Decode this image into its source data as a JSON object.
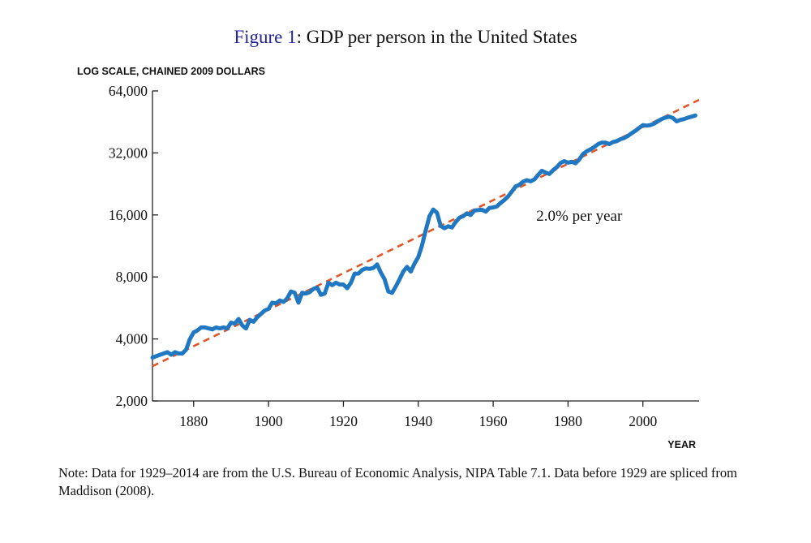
{
  "figure": {
    "label": "Figure 1",
    "title_text": ": GDP per person in the United States"
  },
  "note": "Note: Data for 1929–2014 are from the U.S. Bureau of Economic Analysis, NIPA Table 7.1. Data before 1929 are spliced from Maddison (2008).",
  "colors": {
    "series": "#1f78c1",
    "trend": "#e0562a",
    "axis": "#222222",
    "label_blue": "#23239a"
  },
  "chart_data": {
    "type": "line",
    "title": "Figure 1: GDP per person in the United States",
    "ylabel": "LOG SCALE, CHAINED 2009 DOLLARS",
    "xlabel": "YEAR",
    "y_scale": "log",
    "xlim": [
      1869,
      2015
    ],
    "ylim": [
      2000,
      64000
    ],
    "x_ticks": [
      1880,
      1900,
      1920,
      1940,
      1960,
      1980,
      2000
    ],
    "x_tick_labels": [
      "1880",
      "1900",
      "1920",
      "1940",
      "1960",
      "1980",
      "2000"
    ],
    "y_ticks": [
      2000,
      4000,
      8000,
      16000,
      32000,
      64000
    ],
    "y_tick_labels": [
      "2,000",
      "4,000",
      "8,000",
      "16,000",
      "32,000",
      "64,000"
    ],
    "grid": false,
    "annotation": {
      "text": "2.0% per year",
      "x": 1983,
      "y": 15800
    },
    "series": [
      {
        "style": "solid",
        "x": [
          1869,
          1871,
          1873,
          1874,
          1875,
          1876,
          1877,
          1878,
          1879,
          1880,
          1881,
          1882,
          1883,
          1884,
          1885,
          1886,
          1887,
          1888,
          1889,
          1890,
          1891,
          1892,
          1893,
          1894,
          1895,
          1896,
          1897,
          1898,
          1899,
          1900,
          1901,
          1902,
          1903,
          1904,
          1905,
          1906,
          1907,
          1908,
          1909,
          1910,
          1911,
          1912,
          1913,
          1914,
          1915,
          1916,
          1917,
          1918,
          1919,
          1920,
          1921,
          1922,
          1923,
          1924,
          1925,
          1926,
          1927,
          1928,
          1929,
          1930,
          1931,
          1932,
          1933,
          1934,
          1935,
          1936,
          1937,
          1938,
          1939,
          1940,
          1941,
          1942,
          1943,
          1944,
          1945,
          1946,
          1947,
          1948,
          1949,
          1950,
          1951,
          1952,
          1953,
          1954,
          1955,
          1956,
          1957,
          1958,
          1959,
          1960,
          1961,
          1962,
          1963,
          1964,
          1965,
          1966,
          1967,
          1968,
          1969,
          1970,
          1971,
          1972,
          1973,
          1974,
          1975,
          1976,
          1977,
          1978,
          1979,
          1980,
          1981,
          1982,
          1983,
          1984,
          1985,
          1986,
          1987,
          1988,
          1989,
          1990,
          1991,
          1992,
          1993,
          1994,
          1995,
          1996,
          1997,
          1998,
          1999,
          2000,
          2001,
          2002,
          2003,
          2004,
          2005,
          2006,
          2007,
          2008,
          2009,
          2010,
          2011,
          2012,
          2013,
          2014
        ],
        "y": [
          3250,
          3350,
          3450,
          3350,
          3450,
          3400,
          3400,
          3550,
          4000,
          4300,
          4400,
          4550,
          4550,
          4500,
          4450,
          4550,
          4500,
          4550,
          4500,
          4800,
          4750,
          5000,
          4650,
          4500,
          4950,
          4850,
          5100,
          5300,
          5500,
          5600,
          6000,
          5950,
          6150,
          6050,
          6300,
          6800,
          6700,
          6000,
          6700,
          6650,
          6750,
          7000,
          7100,
          6550,
          6650,
          7500,
          7300,
          7500,
          7350,
          7350,
          7050,
          7500,
          8300,
          8300,
          8650,
          8800,
          8750,
          8850,
          9200,
          8400,
          7800,
          6800,
          6700,
          7200,
          7800,
          8500,
          8950,
          8500,
          9300,
          10000,
          11400,
          13500,
          15800,
          17000,
          16400,
          14100,
          13800,
          14100,
          13900,
          14800,
          15500,
          15800,
          16300,
          16000,
          16800,
          16900,
          16950,
          16600,
          17300,
          17400,
          17600,
          18300,
          18900,
          19700,
          20800,
          22000,
          22400,
          23200,
          23600,
          23300,
          23800,
          25000,
          26200,
          25700,
          25300,
          26400,
          27300,
          28600,
          29200,
          28700,
          29000,
          28500,
          29800,
          31600,
          32600,
          33300,
          34200,
          35300,
          35900,
          35900,
          35300,
          36100,
          36500,
          37300,
          37800,
          38700,
          39900,
          41000,
          42300,
          43700,
          43400,
          43700,
          44400,
          45600,
          46700,
          47500,
          48000,
          47300,
          45500,
          46300,
          46700,
          47500,
          48000,
          48600
        ]
      },
      {
        "style": "dashed",
        "x": [
          1869,
          2015
        ],
        "y": [
          2950,
          57900
        ]
      }
    ]
  }
}
